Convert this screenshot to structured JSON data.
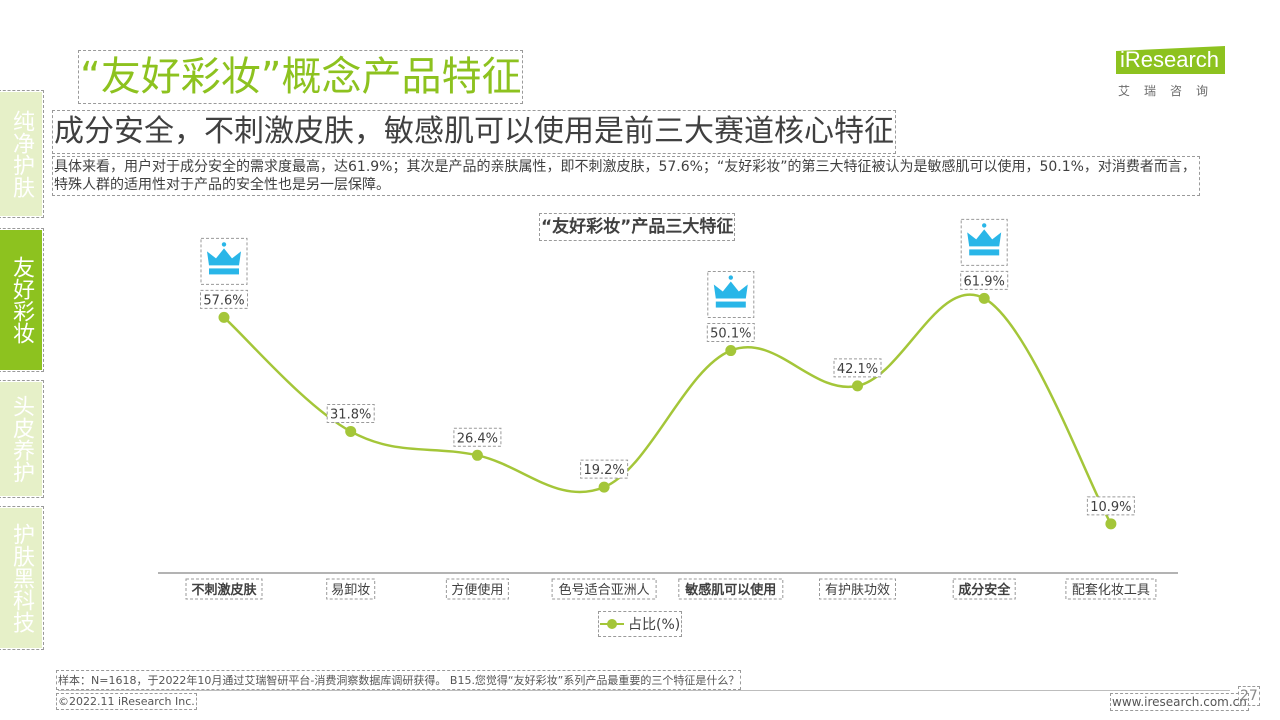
{
  "header": {
    "title": "“友好彩妆”概念产品特征",
    "subtitle": "成分安全，不刺激皮肤，敏感肌可以使用是前三大赛道核心特征",
    "description": "具体来看，用户对于成分安全的需求度最高，达61.9%；其次是产品的亲肤属性，即不刺激皮肤，57.6%；“友好彩妆”的第三大特征被认为是敏感肌可以使用，50.1%，对消费者而言，特殊人群的适用性对于产品的安全性也是另一层保障。"
  },
  "logo": {
    "word": "iResearch",
    "cn": "艾瑞咨询"
  },
  "side_nav": {
    "items": [
      {
        "label": "纯净护肤",
        "active": false
      },
      {
        "label": "友好彩妆",
        "active": true
      },
      {
        "label": "头皮养护",
        "active": false
      },
      {
        "label": "护肤黑科技",
        "active": false
      }
    ]
  },
  "chart_data": {
    "type": "line",
    "title": "“友好彩妆”产品三大特征",
    "categories": [
      "不刺激皮肤",
      "易卸妆",
      "方便使用",
      "色号适合亚洲人",
      "敏感肌可以使用",
      "有护肤功效",
      "成分安全",
      "配套化妆工具"
    ],
    "series": [
      {
        "name": "占比(%)",
        "values": [
          57.6,
          31.8,
          26.4,
          19.2,
          50.1,
          42.1,
          61.9,
          10.9
        ]
      }
    ],
    "labels": [
      "57.6%",
      "31.8%",
      "26.4%",
      "19.2%",
      "50.1%",
      "42.1%",
      "61.9%",
      "10.9%"
    ],
    "highlighted": [
      "不刺激皮肤",
      "敏感肌可以使用",
      "成分安全"
    ],
    "line_color": "#a4c639",
    "crown_color": "#29b6e8",
    "ylim": [
      0,
      70
    ],
    "legend": "bottom"
  },
  "footer": {
    "note": "样本：N=1618，于2022年10月通过艾瑞智研平台-消费洞察数据库调研获得。 B15.您觉得“友好彩妆”系列产品最重要的三个特征是什么？",
    "copyright": "©2022.11 iResearch Inc.",
    "url": "www.iresearch.com.cn",
    "page": "27"
  }
}
